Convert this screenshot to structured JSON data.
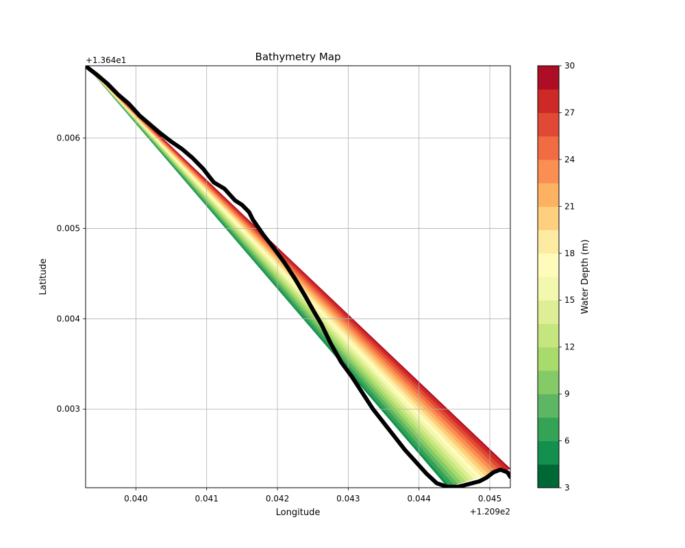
{
  "chart_data": {
    "type": "contour",
    "title": "Bathymetry Map",
    "xlabel": "Longitude",
    "ylabel": "Latitude",
    "x_offset_label": "+1.209e2",
    "y_offset_label": "+1.364e1",
    "xlim": [
      0.03929,
      0.04529
    ],
    "ylim": [
      0.00213,
      0.0068
    ],
    "x_ticks": [
      0.04,
      0.041,
      0.042,
      0.043,
      0.044,
      0.045
    ],
    "x_tick_labels": [
      "0.040",
      "0.041",
      "0.042",
      "0.043",
      "0.044",
      "0.045"
    ],
    "y_ticks": [
      0.003,
      0.004,
      0.005,
      0.006
    ],
    "y_tick_labels": [
      "0.003",
      "0.004",
      "0.005",
      "0.006"
    ],
    "grid": true,
    "colorbar": {
      "label": "Water Depth (m)",
      "min": 3,
      "max": 30,
      "step": 1.5,
      "ticks": [
        3,
        6,
        9,
        12,
        15,
        18,
        21,
        24,
        27,
        30
      ],
      "tick_labels": [
        "3",
        "6",
        "9",
        "12",
        "15",
        "18",
        "21",
        "24",
        "27",
        "30"
      ],
      "colors": [
        "#006837",
        "#13904e",
        "#34a355",
        "#5db663",
        "#84ca66",
        "#a9da6c",
        "#c5e67e",
        "#deee94",
        "#f2f8ad",
        "#fffcbb",
        "#feeba2",
        "#fdd07f",
        "#fdb262",
        "#fa8e53",
        "#f16c42",
        "#e04933",
        "#cd2927",
        "#ae0d26"
      ]
    },
    "corridor": {
      "near_edge": [
        [
          0.0393,
          0.0068
        ],
        [
          0.0444,
          0.00214
        ]
      ],
      "far_edge": [
        [
          0.0393,
          0.0068
        ],
        [
          0.04529,
          0.00234
        ]
      ],
      "depth_near": 5,
      "depth_far": 29
    },
    "track": {
      "color": "#000000",
      "points": [
        [
          0.0393,
          0.00679
        ],
        [
          0.03945,
          0.0067
        ],
        [
          0.0396,
          0.0066
        ],
        [
          0.03975,
          0.00648
        ],
        [
          0.0399,
          0.00638
        ],
        [
          0.04005,
          0.00625
        ],
        [
          0.0402,
          0.00615
        ],
        [
          0.04035,
          0.00605
        ],
        [
          0.0405,
          0.00596
        ],
        [
          0.04065,
          0.00588
        ],
        [
          0.0408,
          0.00578
        ],
        [
          0.04095,
          0.00566
        ],
        [
          0.0411,
          0.00551
        ],
        [
          0.04125,
          0.00544
        ],
        [
          0.0414,
          0.00531
        ],
        [
          0.0415,
          0.00526
        ],
        [
          0.0416,
          0.00518
        ],
        [
          0.04165,
          0.0051
        ],
        [
          0.0418,
          0.00493
        ],
        [
          0.04195,
          0.00478
        ],
        [
          0.0421,
          0.00462
        ],
        [
          0.04225,
          0.00444
        ],
        [
          0.0424,
          0.00424
        ],
        [
          0.0425,
          0.0041
        ],
        [
          0.04262,
          0.00394
        ],
        [
          0.04275,
          0.00373
        ],
        [
          0.0429,
          0.00352
        ],
        [
          0.04305,
          0.00336
        ],
        [
          0.0432,
          0.00318
        ],
        [
          0.04335,
          0.003
        ],
        [
          0.0435,
          0.00285
        ],
        [
          0.04365,
          0.0027
        ],
        [
          0.0438,
          0.00255
        ],
        [
          0.04395,
          0.00242
        ],
        [
          0.0441,
          0.00229
        ],
        [
          0.04425,
          0.00218
        ],
        [
          0.0444,
          0.00214
        ],
        [
          0.04455,
          0.00214
        ],
        [
          0.0447,
          0.00217
        ],
        [
          0.04485,
          0.0022
        ],
        [
          0.04495,
          0.00224
        ],
        [
          0.04505,
          0.0023
        ],
        [
          0.04515,
          0.00233
        ],
        [
          0.04525,
          0.0023
        ],
        [
          0.04529,
          0.00225
        ]
      ]
    }
  }
}
